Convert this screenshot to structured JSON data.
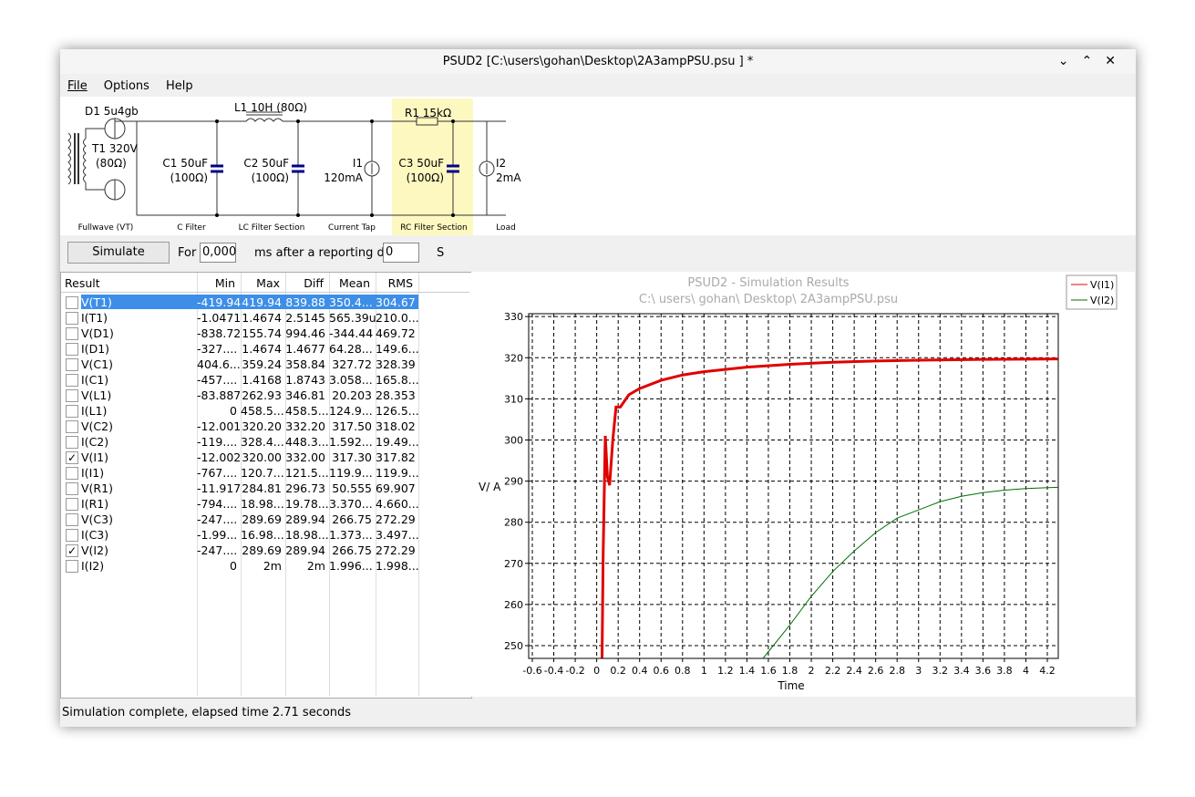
{
  "window": {
    "title": "PSUD2 [C:\\users\\gohan\\Desktop\\2A3ampPSU.psu ] *"
  },
  "menu": [
    "File",
    "Options",
    "Help"
  ],
  "circuit": {
    "labels": {
      "d1": "D1 5u4gb",
      "t1": "T1 320V",
      "t1r": "(80Ω)",
      "l1": "L1 10H (80Ω)",
      "r1": "R1 15kΩ",
      "c1": "C1 50uF",
      "c1r": "(100Ω)",
      "c2": "C2 50uF",
      "c2r": "(100Ω)",
      "i1": "I1",
      "i1v": "120mA",
      "c3": "C3 50uF",
      "c3r": "(100Ω)",
      "i2": "I2",
      "i2v": "2mA"
    },
    "sections": [
      "Fullwave (VT)",
      "C Filter",
      "LC Filter Section",
      "Current Tap",
      "RC Filter Section",
      "Load"
    ]
  },
  "toolbar": {
    "simulate": "Simulate",
    "for": "For",
    "for_value": "0,000",
    "after": "ms after a reporting dela",
    "delay_value": "0",
    "unit": "S"
  },
  "table": {
    "columns": [
      "Result",
      "Min",
      "Max",
      "Diff",
      "Mean",
      "RMS"
    ],
    "rows": [
      [
        "V(T1)",
        "-419.94",
        "419.94",
        "839.88",
        "350.4...",
        "304.67"
      ],
      [
        "I(T1)",
        "-1.0471",
        "1.4674",
        "2.5145",
        "565.39u",
        "210.0..."
      ],
      [
        "V(D1)",
        "-838.72",
        "155.74",
        "994.46",
        "-344.44",
        "469.72"
      ],
      [
        "I(D1)",
        "-327....",
        "1.4674",
        "1.4677",
        "64.28...",
        "149.6..."
      ],
      [
        "V(C1)",
        "404.6...",
        "359.24",
        "358.84",
        "327.72",
        "328.39"
      ],
      [
        "I(C1)",
        "-457....",
        "1.4168",
        "1.8743",
        "3.058...",
        "165.8..."
      ],
      [
        "V(L1)",
        "-83.887",
        "262.93",
        "346.81",
        "20.203",
        "28.353"
      ],
      [
        "I(L1)",
        "0",
        "458.5...",
        "458.5...",
        "124.9...",
        "126.5..."
      ],
      [
        "V(C2)",
        "-12.001",
        "320.20",
        "332.20",
        "317.50",
        "318.02"
      ],
      [
        "I(C2)",
        "-119....",
        "328.4...",
        "448.3...",
        "1.592...",
        "19.49..."
      ],
      [
        "V(I1)",
        "-12.002",
        "320.00",
        "332.00",
        "317.30",
        "317.82"
      ],
      [
        "I(I1)",
        "-767....",
        "120.7...",
        "121.5...",
        "119.9...",
        "119.9..."
      ],
      [
        "V(R1)",
        "-11.917",
        "284.81",
        "296.73",
        "50.555",
        "69.907"
      ],
      [
        "I(R1)",
        "-794....",
        "18.98...",
        "19.78...",
        "3.370...",
        "4.660..."
      ],
      [
        "V(C3)",
        "-247....",
        "289.69",
        "289.94",
        "266.75",
        "272.29"
      ],
      [
        "I(C3)",
        "-1.99...",
        "16.98...",
        "18.98...",
        "1.373...",
        "3.497..."
      ],
      [
        "V(I2)",
        "-247....",
        "289.69",
        "289.94",
        "266.75",
        "272.29"
      ],
      [
        "I(I2)",
        "0",
        "2m",
        "2m",
        "1.996...",
        "1.998..."
      ]
    ],
    "checked": [
      false,
      false,
      false,
      false,
      false,
      false,
      false,
      false,
      false,
      false,
      true,
      false,
      false,
      false,
      false,
      false,
      true,
      false
    ],
    "selected_row": 0
  },
  "chart_data": {
    "type": "line",
    "title": "PSUD2 - Simulation Results",
    "subtitle": "C:\\ users\\ gohan\\ Desktop\\ 2A3ampPSU.psu",
    "xlabel": "Time",
    "ylabel": "V/ A",
    "xlim": [
      -0.634,
      4.302
    ],
    "ylim": [
      246.9,
      330.7
    ],
    "xticks": [
      -0.6,
      -0.4,
      -0.2,
      0,
      0.2,
      0.4,
      0.6,
      0.8,
      1,
      1.2,
      1.4,
      1.6,
      1.8,
      2,
      2.2,
      2.4,
      2.6,
      2.8,
      3,
      3.2,
      3.4,
      3.6,
      3.8,
      4,
      4.2
    ],
    "yticks": [
      250,
      260,
      270,
      280,
      290,
      300,
      310,
      320,
      330
    ],
    "grid": true,
    "legend": "outside-right",
    "series": [
      {
        "name": "V(I1)",
        "color": "#e00000",
        "width": 3,
        "x": [
          0.05,
          0.06,
          0.08,
          0.1,
          0.12,
          0.15,
          0.18,
          0.22,
          0.3,
          0.4,
          0.6,
          0.8,
          1.0,
          1.4,
          1.8,
          2.2,
          2.6,
          3.0,
          3.6,
          4.3
        ],
        "values": [
          247,
          272,
          301,
          291,
          289,
          300,
          308,
          308,
          311,
          312.5,
          314.5,
          315.8,
          316.6,
          317.7,
          318.4,
          318.9,
          319.2,
          319.4,
          319.6,
          319.7
        ]
      },
      {
        "name": "V(I2)",
        "color": "#007000",
        "width": 1,
        "x": [
          1.55,
          1.8,
          2.0,
          2.2,
          2.4,
          2.6,
          2.8,
          3.0,
          3.2,
          3.4,
          3.6,
          3.8,
          4.0,
          4.3
        ],
        "values": [
          246.9,
          255,
          262,
          268,
          273,
          277.5,
          281,
          283,
          285,
          286.3,
          287.2,
          287.8,
          288.2,
          288.5
        ]
      }
    ]
  },
  "status": "Simulation complete, elapsed time 2.71 seconds"
}
